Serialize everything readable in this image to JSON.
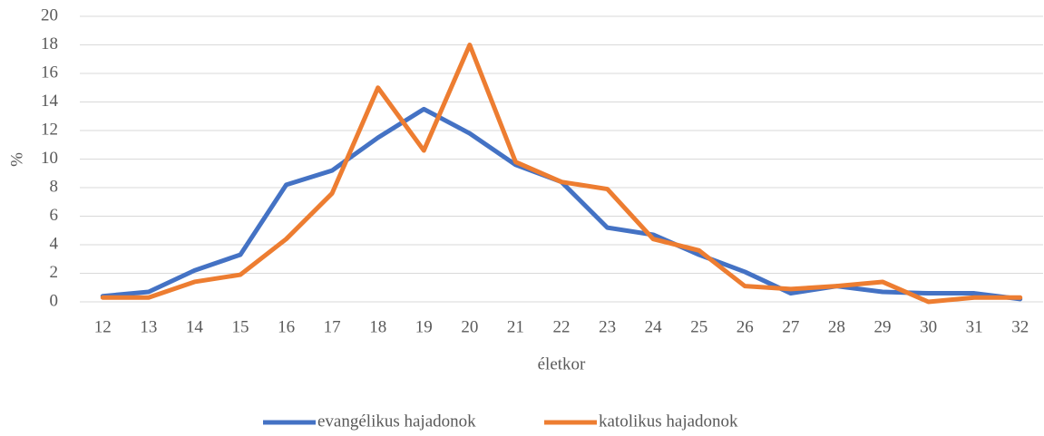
{
  "chart_data": {
    "type": "line",
    "x_label": "életkor",
    "y_label": "%",
    "categories": [
      "12",
      "13",
      "14",
      "15",
      "16",
      "17",
      "18",
      "19",
      "20",
      "21",
      "22",
      "23",
      "24",
      "25",
      "26",
      "27",
      "28",
      "29",
      "30",
      "31",
      "32"
    ],
    "series": [
      {
        "name": "evangélikus hajadonok",
        "color": "#4472c4",
        "values": [
          0.4,
          0.7,
          2.2,
          3.3,
          8.2,
          9.2,
          11.5,
          13.5,
          11.8,
          9.6,
          8.4,
          5.2,
          4.7,
          3.3,
          2.1,
          0.6,
          1.1,
          0.7,
          0.6,
          0.6,
          0.2
        ]
      },
      {
        "name": "katolikus hajadonok",
        "color": "#ed7d31",
        "values": [
          0.3,
          0.3,
          1.4,
          1.9,
          4.4,
          7.6,
          15.0,
          10.6,
          18.0,
          9.8,
          8.4,
          7.9,
          4.4,
          3.6,
          1.1,
          0.9,
          1.1,
          1.4,
          0.0,
          0.3,
          0.3
        ]
      }
    ],
    "ylim": [
      0,
      20
    ],
    "yticks": [
      0,
      2,
      4,
      6,
      8,
      10,
      12,
      14,
      16,
      18,
      20
    ],
    "grid": true,
    "legend": "bottom"
  }
}
